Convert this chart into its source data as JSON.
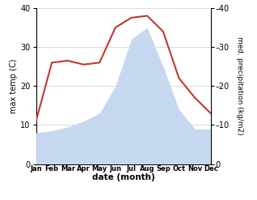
{
  "months": [
    "Jan",
    "Feb",
    "Mar",
    "Apr",
    "May",
    "Jun",
    "Jul",
    "Aug",
    "Sep",
    "Oct",
    "Nov",
    "Dec"
  ],
  "temperature": [
    11,
    26,
    26.5,
    25.5,
    26,
    35,
    37.5,
    38,
    34,
    22,
    17,
    13
  ],
  "precipitation": [
    8,
    8.5,
    9.5,
    11,
    13,
    20,
    32,
    35,
    25,
    14,
    9,
    9
  ],
  "temp_color": "#c0392b",
  "precip_color": "#c5d8f0",
  "ylim_left": [
    0,
    40
  ],
  "ylim_right": [
    0,
    40
  ],
  "xlabel": "date (month)",
  "ylabel_left": "max temp (C)",
  "ylabel_right": "med. precipitation (kg/m2)",
  "background_color": "#ffffff",
  "grid_color": "#cccccc",
  "yticks": [
    0,
    10,
    20,
    30,
    40
  ],
  "right_yticks": [
    0,
    10,
    20,
    30,
    40
  ]
}
